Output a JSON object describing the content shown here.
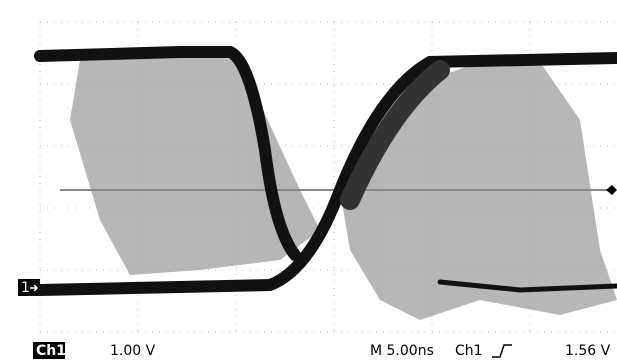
{
  "marker": "1",
  "status_bar": {
    "channel": "Ch1",
    "scale": "1.00 V",
    "timebase": "M 5.00ns",
    "trigger_source": "Ch1",
    "trigger_level": "1.56 V"
  }
}
